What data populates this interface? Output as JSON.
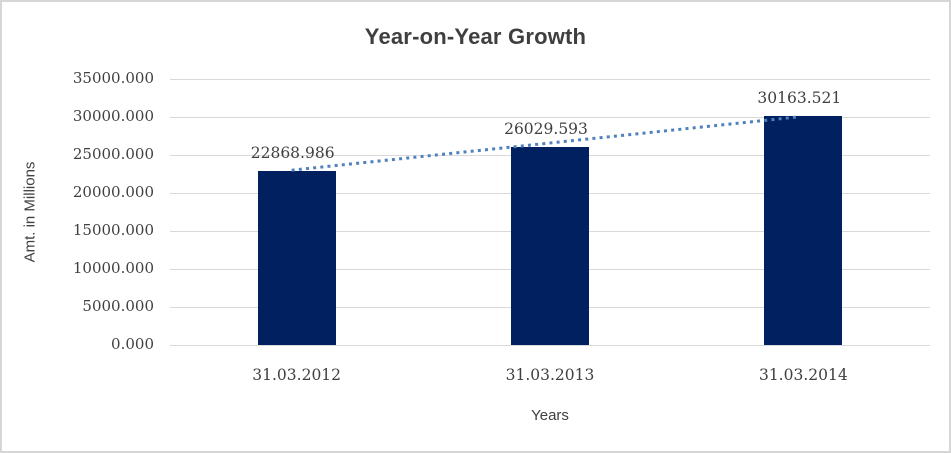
{
  "chart_data": {
    "type": "bar",
    "title": "Year-on-Year Growth",
    "xlabel": "Years",
    "ylabel": "Amt. in Millions",
    "categories": [
      "31.03.2012",
      "31.03.2013",
      "31.03.2014"
    ],
    "values": [
      22868.986,
      26029.593,
      30163.521
    ],
    "data_labels": [
      "22868.986",
      "26029.593",
      "30163.521"
    ],
    "ylim": [
      0,
      35000
    ],
    "ytick_interval": 5000,
    "ytick_labels": [
      "0.000",
      "5000.000",
      "10000.000",
      "15000.000",
      "20000.000",
      "25000.000",
      "30000.000",
      "35000.000"
    ],
    "grid": "horizontal-on",
    "legend_position": "none",
    "trendline": {
      "type": "linear",
      "style": "dotted"
    },
    "colors": {
      "bar": "#002060",
      "trendline": "#4f81bd",
      "gridline": "#d9d9d9",
      "text": "#404040",
      "chart_border": "#d6d6d6",
      "background": "#ffffff"
    }
  }
}
